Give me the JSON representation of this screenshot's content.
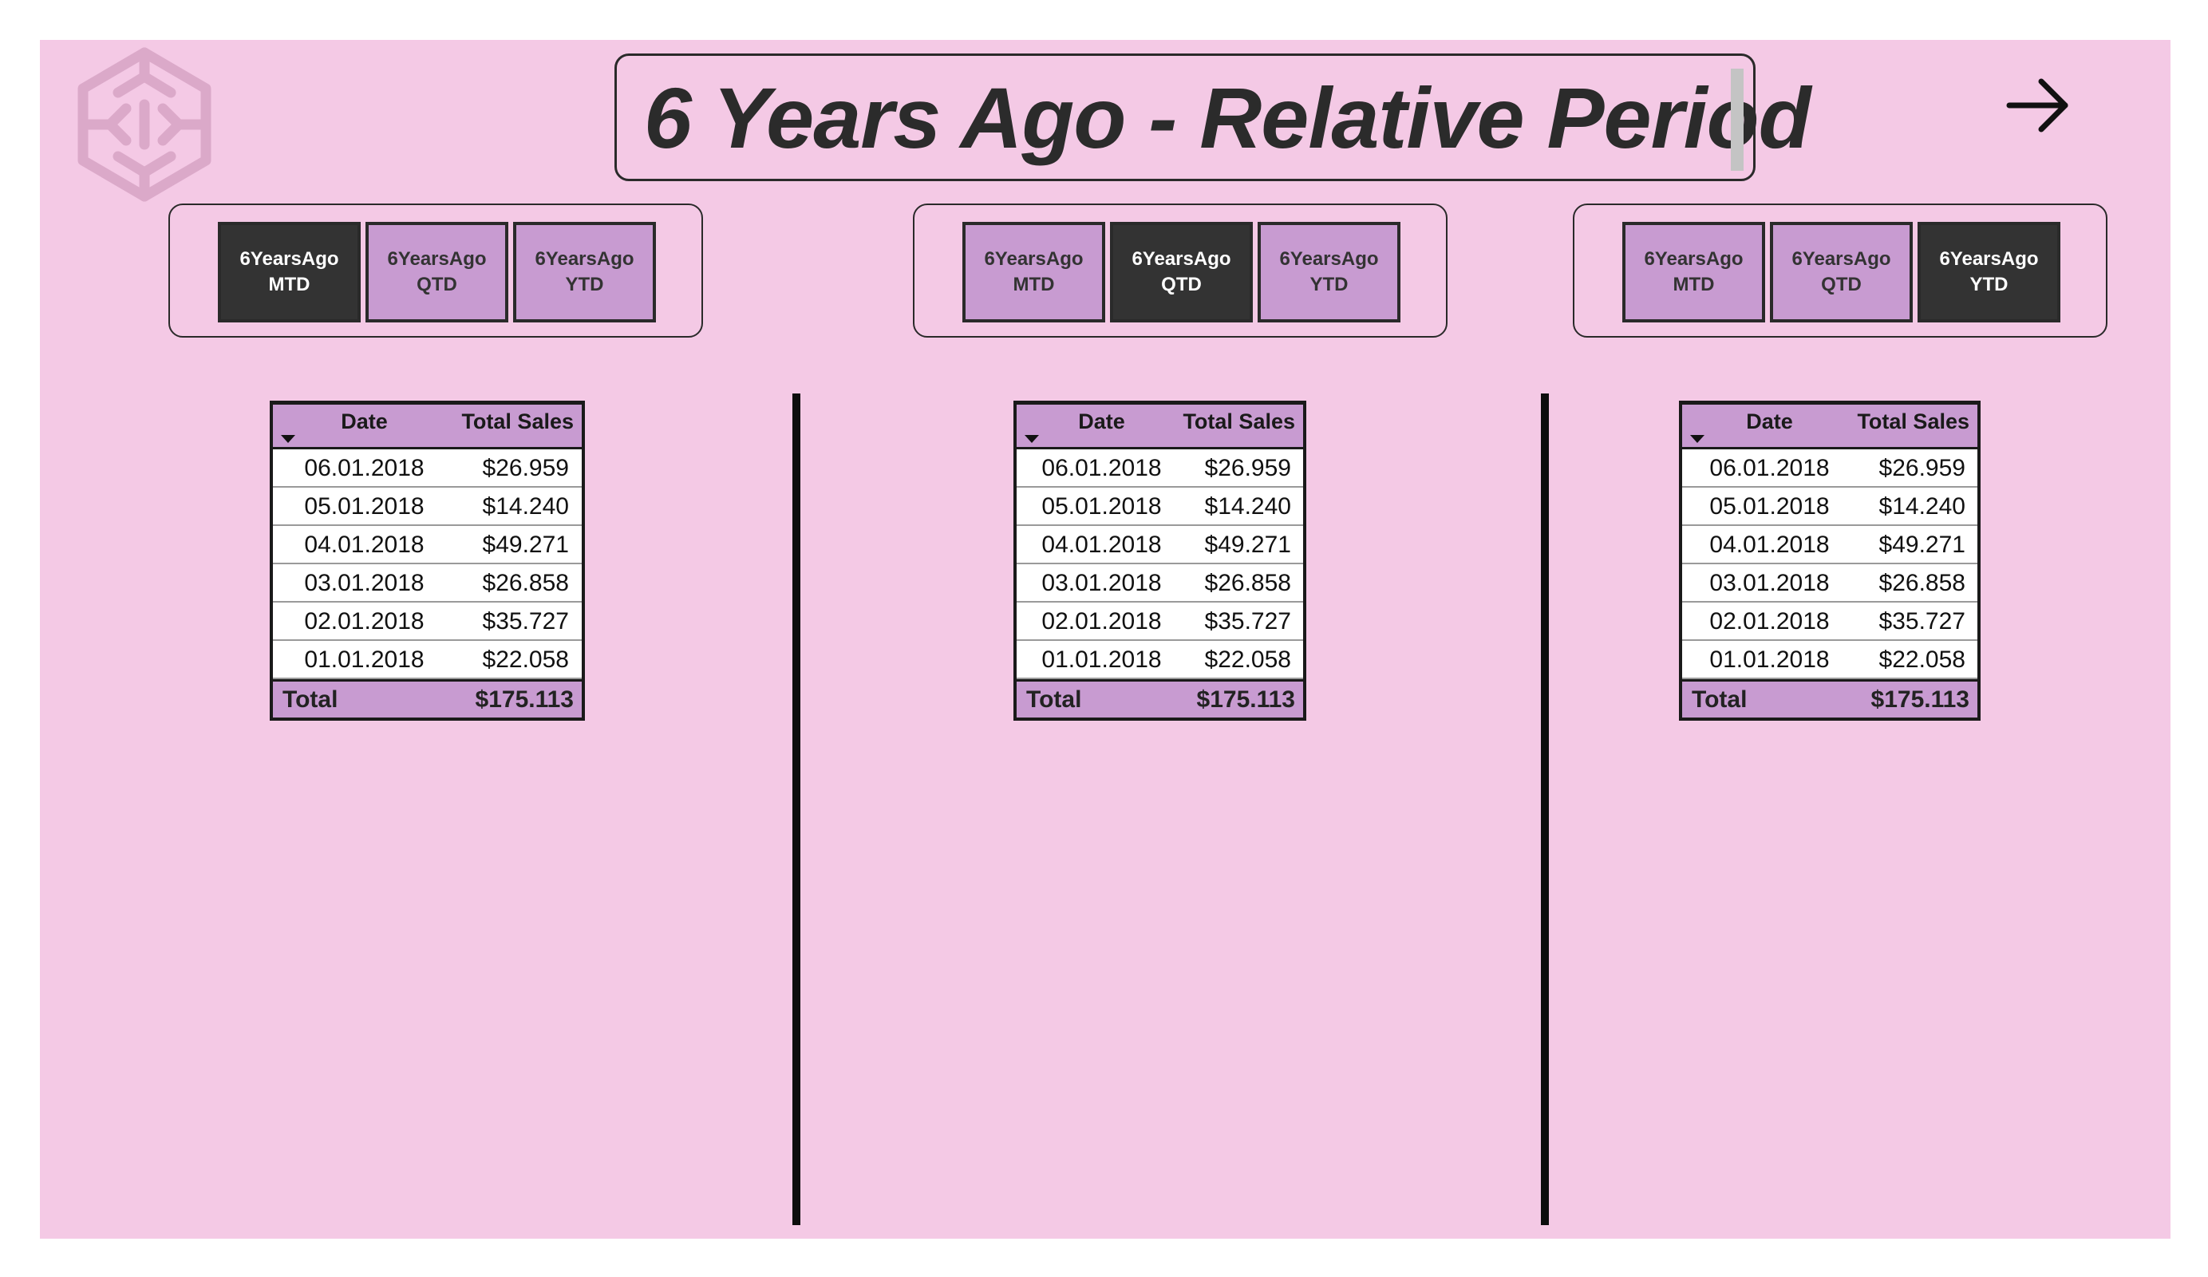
{
  "title": "6 Years Ago - Relative Period",
  "icons": {
    "logo": "brain-logo-icon",
    "navigate": "arrow-right-icon"
  },
  "colors": {
    "background": "#f4c9e5",
    "button": "#c89bd1",
    "button_active": "#333333"
  },
  "panels": [
    {
      "buttons": [
        {
          "line1": "6YearsAgo",
          "line2": "MTD",
          "active": true
        },
        {
          "line1": "6YearsAgo",
          "line2": "QTD",
          "active": false
        },
        {
          "line1": "6YearsAgo",
          "line2": "YTD",
          "active": false
        }
      ],
      "table": {
        "headers": [
          "Date",
          "Total Sales"
        ],
        "rows": [
          [
            "06.01.2018",
            "$26.959"
          ],
          [
            "05.01.2018",
            "$14.240"
          ],
          [
            "04.01.2018",
            "$49.271"
          ],
          [
            "03.01.2018",
            "$26.858"
          ],
          [
            "02.01.2018",
            "$35.727"
          ],
          [
            "01.01.2018",
            "$22.058"
          ]
        ],
        "total_label": "Total",
        "total_value": "$175.113"
      }
    },
    {
      "buttons": [
        {
          "line1": "6YearsAgo",
          "line2": "MTD",
          "active": false
        },
        {
          "line1": "6YearsAgo",
          "line2": "QTD",
          "active": true
        },
        {
          "line1": "6YearsAgo",
          "line2": "YTD",
          "active": false
        }
      ],
      "table": {
        "headers": [
          "Date",
          "Total Sales"
        ],
        "rows": [
          [
            "06.01.2018",
            "$26.959"
          ],
          [
            "05.01.2018",
            "$14.240"
          ],
          [
            "04.01.2018",
            "$49.271"
          ],
          [
            "03.01.2018",
            "$26.858"
          ],
          [
            "02.01.2018",
            "$35.727"
          ],
          [
            "01.01.2018",
            "$22.058"
          ]
        ],
        "total_label": "Total",
        "total_value": "$175.113"
      }
    },
    {
      "buttons": [
        {
          "line1": "6YearsAgo",
          "line2": "MTD",
          "active": false
        },
        {
          "line1": "6YearsAgo",
          "line2": "QTD",
          "active": false
        },
        {
          "line1": "6YearsAgo",
          "line2": "YTD",
          "active": true
        }
      ],
      "table": {
        "headers": [
          "Date",
          "Total Sales"
        ],
        "rows": [
          [
            "06.01.2018",
            "$26.959"
          ],
          [
            "05.01.2018",
            "$14.240"
          ],
          [
            "04.01.2018",
            "$49.271"
          ],
          [
            "03.01.2018",
            "$26.858"
          ],
          [
            "02.01.2018",
            "$35.727"
          ],
          [
            "01.01.2018",
            "$22.058"
          ]
        ],
        "total_label": "Total",
        "total_value": "$175.113"
      }
    }
  ]
}
